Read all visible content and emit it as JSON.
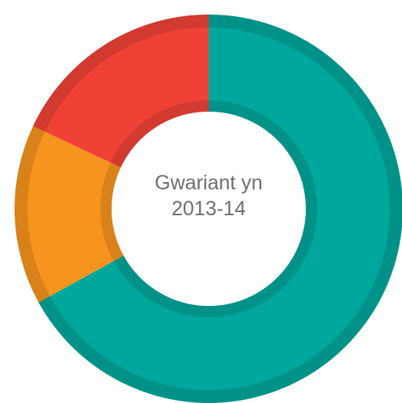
{
  "chart_data": {
    "type": "donut",
    "title": "Gwariant yn 2013-14",
    "values": [
      67,
      15,
      18
    ],
    "colors": [
      "#00a79d",
      "#f7941d",
      "#ef4136"
    ]
  }
}
